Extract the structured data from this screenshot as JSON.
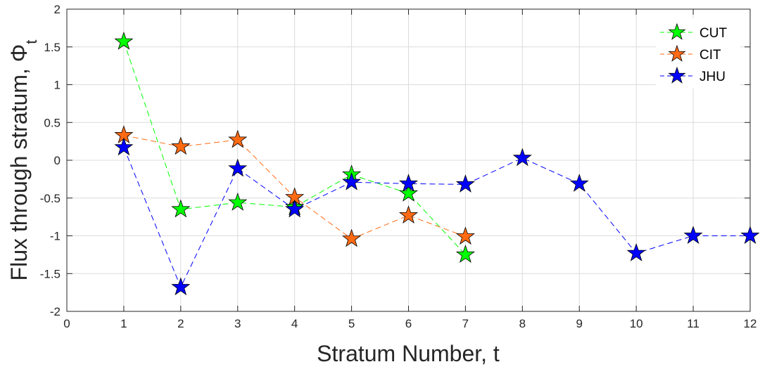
{
  "chart_data": {
    "type": "line",
    "xlabel": "Stratum Number, t",
    "ylabel_main": "Flux through stratum, Φ",
    "ylabel_sub": "t",
    "xlim": [
      0,
      12
    ],
    "ylim": [
      -2,
      2
    ],
    "xticks": [
      "0",
      "1",
      "2",
      "3",
      "4",
      "5",
      "6",
      "7",
      "8",
      "9",
      "10",
      "11",
      "12"
    ],
    "yticks": [
      "2",
      "1.5",
      "1",
      "0.5",
      "0",
      "-0.5",
      "-1",
      "-1.5",
      "-2"
    ],
    "grid": true,
    "legend_position": "top-right",
    "marker": "star",
    "line_style": "dashed",
    "series": [
      {
        "name": "CUT",
        "color": "#00ff00",
        "x": [
          1,
          2,
          3,
          4,
          5,
          6,
          7
        ],
        "y": [
          1.57,
          -0.65,
          -0.56,
          -0.62,
          -0.19,
          -0.44,
          -1.25
        ]
      },
      {
        "name": "CIT",
        "color": "#ff6a13",
        "x": [
          1,
          2,
          3,
          4,
          5,
          6,
          7
        ],
        "y": [
          0.33,
          0.18,
          0.27,
          -0.49,
          -1.04,
          -0.73,
          -1.01
        ]
      },
      {
        "name": "JHU",
        "color": "#0000ff",
        "x": [
          1,
          2,
          3,
          4,
          5,
          6,
          7,
          8,
          9,
          10,
          11,
          12
        ],
        "y": [
          0.17,
          -1.68,
          -0.11,
          -0.65,
          -0.29,
          -0.31,
          -0.32,
          0.03,
          -0.31,
          -1.23,
          -1.0,
          -1.0
        ]
      }
    ]
  }
}
